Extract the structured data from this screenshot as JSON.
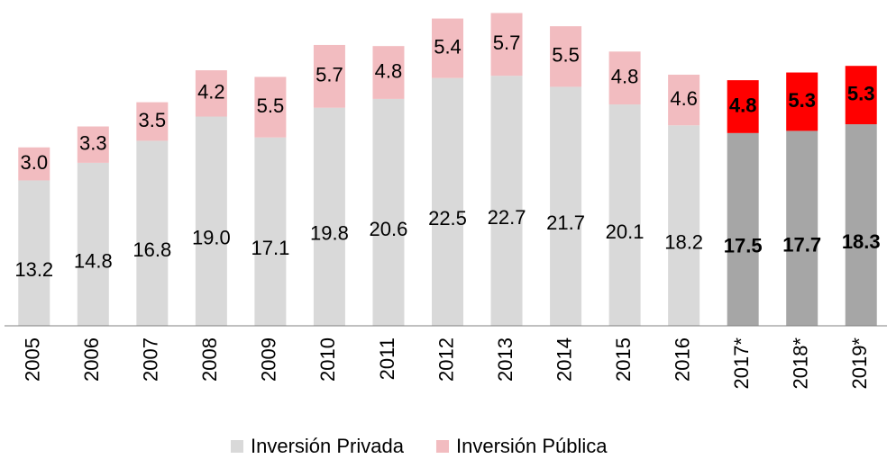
{
  "chart_data": {
    "type": "stacked_bar",
    "categories": [
      "2005",
      "2006",
      "2007",
      "2008",
      "2009",
      "2010",
      "2011",
      "2012",
      "2013",
      "2014",
      "2015",
      "2016",
      "2017*",
      "2018*",
      "2019*"
    ],
    "series": [
      {
        "name": "Inversión Privada",
        "color": "#d9d9d9",
        "colors": [
          "#d9d9d9",
          "#d9d9d9",
          "#d9d9d9",
          "#d9d9d9",
          "#d9d9d9",
          "#d9d9d9",
          "#d9d9d9",
          "#d9d9d9",
          "#d9d9d9",
          "#d9d9d9",
          "#d9d9d9",
          "#d9d9d9",
          "#a6a6a6",
          "#a6a6a6",
          "#a6a6a6"
        ],
        "values": [
          13.2,
          14.8,
          16.8,
          19.0,
          17.1,
          19.8,
          20.6,
          22.5,
          22.7,
          21.7,
          20.1,
          18.2,
          17.5,
          17.7,
          18.3
        ],
        "value_labels": [
          "13.2",
          "14.8",
          "16.8",
          "19.0",
          "17.1",
          "19.8",
          "20.6",
          "22.5",
          "22.7",
          "21.7",
          "20.1",
          "18.2",
          "17.5",
          "17.7",
          "18.3"
        ]
      },
      {
        "name": "Inversión Pública",
        "color": "#f2bcc0",
        "colors": [
          "#f2bcc0",
          "#f2bcc0",
          "#f2bcc0",
          "#f2bcc0",
          "#f2bcc0",
          "#f2bcc0",
          "#f2bcc0",
          "#f2bcc0",
          "#f2bcc0",
          "#f2bcc0",
          "#f2bcc0",
          "#f2bcc0",
          "#ff0000",
          "#ff0000",
          "#ff0000"
        ],
        "values": [
          3.0,
          3.3,
          3.5,
          4.2,
          5.5,
          5.7,
          4.8,
          5.4,
          5.7,
          5.5,
          4.8,
          4.6,
          4.8,
          5.3,
          5.3
        ],
        "value_labels": [
          "3.0",
          "3.3",
          "3.5",
          "4.2",
          "5.5",
          "5.7",
          "4.8",
          "5.4",
          "5.7",
          "5.5",
          "4.8",
          "4.6",
          "4.8",
          "5.3",
          "5.3"
        ]
      }
    ],
    "ylim": [
      0,
      29.5
    ],
    "legend": "bottom"
  }
}
